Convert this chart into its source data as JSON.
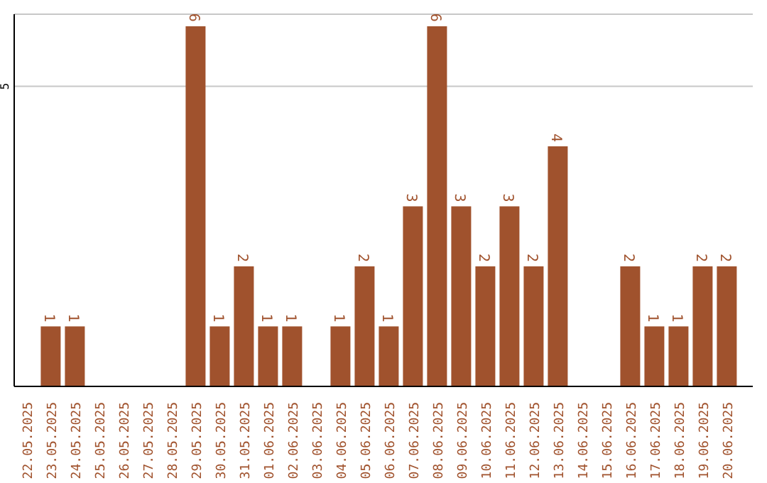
{
  "chart_data": {
    "type": "bar",
    "categories": [
      "22.05.2025",
      "23.05.2025",
      "24.05.2025",
      "25.05.2025",
      "26.05.2025",
      "27.05.2025",
      "28.05.2025",
      "29.05.2025",
      "30.05.2025",
      "31.05.2025",
      "01.06.2025",
      "02.06.2025",
      "03.06.2025",
      "04.06.2025",
      "05.06.2025",
      "06.06.2025",
      "07.06.2025",
      "08.06.2025",
      "09.06.2025",
      "10.06.2025",
      "11.06.2025",
      "12.06.2025",
      "13.06.2025",
      "14.06.2025",
      "15.06.2025",
      "16.06.2025",
      "17.06.2025",
      "18.06.2025",
      "19.06.2025",
      "20.06.2025"
    ],
    "values": [
      0,
      1,
      1,
      0,
      0,
      0,
      0,
      6,
      1,
      2,
      1,
      1,
      0,
      1,
      2,
      1,
      3,
      6,
      3,
      2,
      3,
      2,
      4,
      0,
      0,
      2,
      1,
      1,
      2,
      2
    ],
    "value_labels": [
      null,
      "1",
      "1",
      null,
      null,
      null,
      null,
      "6",
      "1",
      "2",
      "1",
      "1",
      null,
      "1",
      "2",
      "1",
      "3",
      "6",
      "3",
      "2",
      "3",
      "2",
      "4",
      null,
      null,
      "2",
      "1",
      "1",
      "2",
      "2"
    ],
    "color": "#a0522d",
    "ylim": [
      0,
      6.2
    ],
    "yticks": [
      5
    ],
    "grid": "y"
  }
}
